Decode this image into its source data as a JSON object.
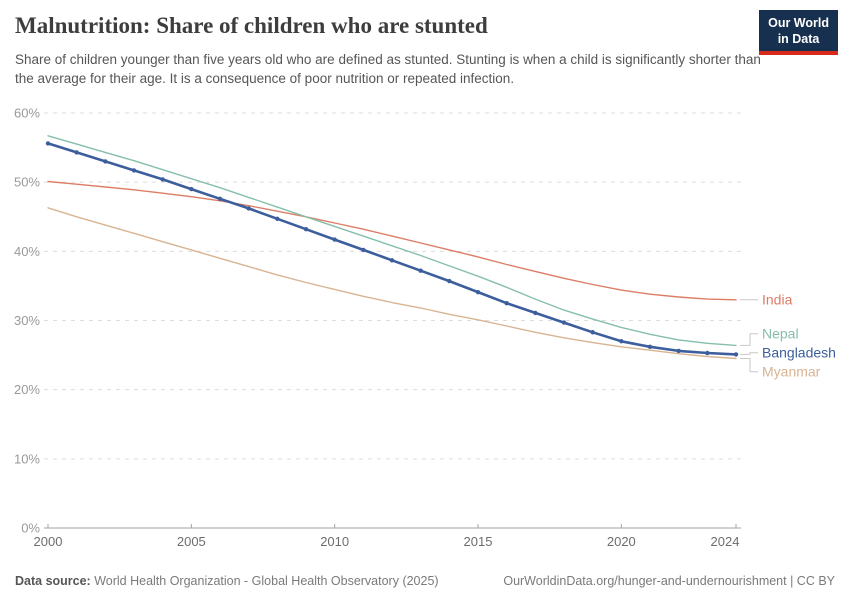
{
  "header": {
    "title": "Malnutrition: Share of children who are stunted",
    "subtitle": "Share of children younger than five years old who are defined as stunted. Stunting is when a child is significantly shorter than the average for their age. It is a consequence of poor nutrition or repeated infection.",
    "logo": {
      "line1": "Our World",
      "line2": "in Data",
      "bg": "#17304f",
      "accent": "#d8291d"
    }
  },
  "footer": {
    "source_label": "Data source:",
    "source_text": " World Health Organization - Global Health Observatory (2025)",
    "link_text": "OurWorldinData.org/hunger-and-undernourishment | CC BY"
  },
  "chart_data": {
    "type": "line",
    "title": "Malnutrition: Share of children who are stunted",
    "xlabel": "",
    "ylabel": "",
    "x": [
      2000,
      2001,
      2002,
      2003,
      2004,
      2005,
      2006,
      2007,
      2008,
      2009,
      2010,
      2011,
      2012,
      2013,
      2014,
      2015,
      2016,
      2017,
      2018,
      2019,
      2020,
      2021,
      2022,
      2023,
      2024
    ],
    "xlim": [
      2000,
      2024
    ],
    "ylim": [
      0,
      60
    ],
    "yticks": [
      0,
      10,
      20,
      30,
      40,
      50,
      60
    ],
    "ytick_suffix": "%",
    "xticks": [
      2000,
      2005,
      2010,
      2015,
      2020,
      2024
    ],
    "grid": "horizontal-dashed",
    "legend_position": "right-line-end-labels",
    "series": [
      {
        "name": "India",
        "color": "#dd7d66",
        "marker": false,
        "emphasis": false,
        "values": [
          50.1,
          49.7,
          49.3,
          48.9,
          48.4,
          47.9,
          47.3,
          46.6,
          45.8,
          45.0,
          44.1,
          43.2,
          42.2,
          41.2,
          40.2,
          39.2,
          38.1,
          37.1,
          36.1,
          35.2,
          34.4,
          33.8,
          33.4,
          33.1,
          33.0
        ]
      },
      {
        "name": "Nepal",
        "color": "#86bfa9",
        "marker": false,
        "emphasis": false,
        "values": [
          56.7,
          55.5,
          54.3,
          53.1,
          51.8,
          50.5,
          49.2,
          47.8,
          46.4,
          45.0,
          43.6,
          42.2,
          40.8,
          39.4,
          37.9,
          36.4,
          34.8,
          33.1,
          31.5,
          30.2,
          29.0,
          28.0,
          27.2,
          26.7,
          26.4
        ]
      },
      {
        "name": "Bangladesh",
        "color": "#3d5e9d",
        "marker": true,
        "emphasis": true,
        "values": [
          55.6,
          54.3,
          53.0,
          51.7,
          50.4,
          49.0,
          47.6,
          46.2,
          44.7,
          43.2,
          41.7,
          40.2,
          38.7,
          37.2,
          35.7,
          34.1,
          32.5,
          31.1,
          29.7,
          28.3,
          27.0,
          26.2,
          25.6,
          25.3,
          25.1
        ]
      },
      {
        "name": "Myanmar",
        "color": "#d8b492",
        "marker": false,
        "emphasis": false,
        "values": [
          46.3,
          45.0,
          43.8,
          42.6,
          41.4,
          40.2,
          39.0,
          37.8,
          36.6,
          35.5,
          34.5,
          33.5,
          32.6,
          31.8,
          30.9,
          30.1,
          29.2,
          28.3,
          27.5,
          26.8,
          26.2,
          25.7,
          25.2,
          24.8,
          24.5
        ]
      }
    ]
  }
}
